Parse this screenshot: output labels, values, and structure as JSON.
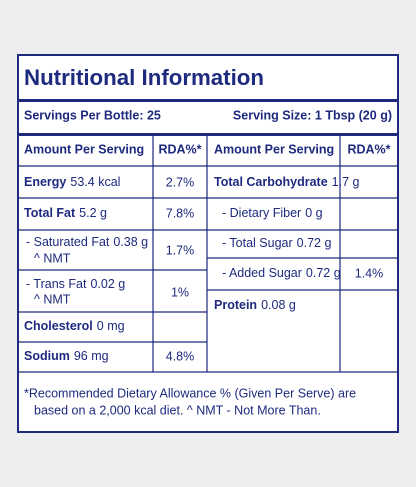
{
  "title": "Nutritional Information",
  "servings_per_bottle": "Servings Per Bottle: 25",
  "serving_size": "Serving Size: 1 Tbsp (20 g)",
  "table": {
    "headers": [
      "Amount Per Serving",
      "RDA%*",
      "Amount Per Serving",
      "RDA%*"
    ],
    "left": [
      {
        "name": "Energy",
        "amount": "53.4 kcal",
        "rda": "2.7%"
      },
      {
        "name": "Total Fat",
        "amount": "5.2 g",
        "rda": "7.8%"
      },
      {
        "name": "- Saturated Fat",
        "amount": "0.38 g",
        "note": "^ NMT",
        "rda": "1.7%"
      },
      {
        "name": "- Trans Fat",
        "amount": "0.02 g",
        "note": "^ NMT",
        "rda": "1%"
      },
      {
        "name": "Cholesterol",
        "amount": "0 mg"
      },
      {
        "name": "Sodium",
        "amount": "96 mg",
        "rda": "4.8%"
      }
    ],
    "right": [
      {
        "name": "Total Carbohydrate",
        "amount": "1.7 g"
      },
      {
        "name": "- Dietary Fiber",
        "amount": "0 g"
      },
      {
        "name": "- Total Sugar",
        "amount": "0.72 g"
      },
      {
        "name": "- Added Sugar",
        "amount": "0.72 g",
        "rda": "1.4%"
      },
      {
        "name": "Protein",
        "amount": "0.08 g"
      }
    ]
  },
  "footnote": [
    "*Recommended Dietary Allowance % (Given Per Serve) are",
    "based on a 2,000 kcal diet. ^ NMT - Not More Than."
  ]
}
